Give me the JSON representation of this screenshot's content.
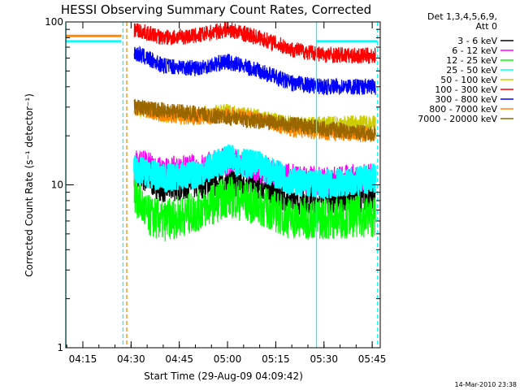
{
  "chart_data": {
    "type": "line",
    "title": "HESSI Observing Summary Count Rates, Corrected",
    "xlabel": "Start Time (29-Aug-09 04:09:42)",
    "ylabel": "Corrected Count Rate (s⁻¹ detector⁻¹)",
    "yscale": "log",
    "ylim": [
      1,
      100
    ],
    "xlim": [
      "04:09:42",
      "05:47:30"
    ],
    "x_ticks": [
      "04:15",
      "04:30",
      "04:45",
      "05:00",
      "05:15",
      "05:30",
      "05:45"
    ],
    "y_ticks": [
      "1",
      "10",
      "100"
    ],
    "legend_header": [
      "Det 1,3,4,5,6,9,",
      "Att 0"
    ],
    "legend_position": "right",
    "series": [
      {
        "name": "3 - 6 keV",
        "color": "#000000",
        "x": [
          "04:31",
          "04:40",
          "04:50",
          "05:00",
          "05:10",
          "05:20",
          "05:30",
          "05:40",
          "05:46"
        ],
        "values": [
          12,
          9.5,
          10,
          10.5,
          10,
          8,
          8.2,
          8.3,
          8.3
        ]
      },
      {
        "name": "6 - 12 keV",
        "color": "#ff00ff",
        "x": [
          "04:31",
          "04:40",
          "04:50",
          "05:00",
          "05:10",
          "05:20",
          "05:30",
          "05:40",
          "05:46"
        ],
        "values": [
          14,
          12,
          12.5,
          14,
          12.5,
          11,
          10.5,
          11,
          11
        ]
      },
      {
        "name": "12 - 25 keV",
        "color": "#00ff00",
        "x": [
          "04:31",
          "04:35",
          "04:40",
          "04:50",
          "05:00",
          "05:10",
          "05:20",
          "05:30",
          "05:40",
          "05:46"
        ],
        "values": [
          9,
          6.5,
          6,
          6.8,
          8.5,
          7.5,
          6.2,
          6.2,
          6.4,
          6.4
        ]
      },
      {
        "name": "25 - 50 keV",
        "color": "#00ffff",
        "x": [
          "04:31",
          "04:40",
          "04:50",
          "05:00",
          "05:10",
          "05:20",
          "05:30",
          "05:40",
          "05:46"
        ],
        "values": [
          12.5,
          11,
          11.5,
          14.5,
          13,
          10.5,
          10,
          10.5,
          11
        ]
      },
      {
        "name": "50 - 100 keV",
        "color": "#cccc00",
        "x": [
          "04:31",
          "04:40",
          "04:50",
          "05:00",
          "05:10",
          "05:20",
          "05:30",
          "05:40",
          "05:46"
        ],
        "values": [
          30,
          27,
          27,
          28,
          26,
          23.5,
          23.5,
          24,
          24
        ]
      },
      {
        "name": "100 - 300 keV",
        "color": "#ff0000",
        "x": [
          "04:31",
          "04:40",
          "04:50",
          "05:00",
          "05:10",
          "05:20",
          "05:30",
          "05:40",
          "05:46"
        ],
        "values": [
          90,
          80,
          82,
          90,
          80,
          68,
          63,
          62,
          62
        ]
      },
      {
        "name": "300 - 800 keV",
        "color": "#0000ff",
        "x": [
          "04:31",
          "04:40",
          "04:50",
          "05:00",
          "05:10",
          "05:20",
          "05:30",
          "05:40",
          "05:46"
        ],
        "values": [
          65,
          54,
          52,
          57,
          50,
          42,
          40,
          40,
          40
        ]
      },
      {
        "name": "800 - 7000 keV",
        "color": "#ff8800",
        "x": [
          "04:31",
          "04:40",
          "04:50",
          "05:00",
          "05:10",
          "05:20",
          "05:30",
          "05:40",
          "05:46"
        ],
        "values": [
          30,
          27,
          26,
          27,
          25,
          22,
          21,
          20.5,
          20.5
        ]
      },
      {
        "name": "7000 - 20000 keV",
        "color": "#996600",
        "x": [
          "04:31",
          "05:46"
        ],
        "values": [
          30,
          20.5
        ]
      }
    ],
    "pre_gap_levels": [
      {
        "color": "#ff8800",
        "value": 82
      },
      {
        "color": "#00ffff",
        "value": 76
      }
    ],
    "attenuator_markers": [
      {
        "x": "04:09:42",
        "color": "#00ffff",
        "style": "solid"
      },
      {
        "x": "04:27:30",
        "color": "#00ffff",
        "style": "dashed"
      },
      {
        "x": "04:28:40",
        "color": "#ff8800",
        "style": "dashed"
      },
      {
        "x": "05:27:40",
        "color": "#00ffff",
        "style": "solid"
      },
      {
        "x": "05:46:40",
        "color": "#00ffff",
        "style": "dashed"
      }
    ],
    "footer_stamp": "14-Mar-2010 23:38"
  }
}
